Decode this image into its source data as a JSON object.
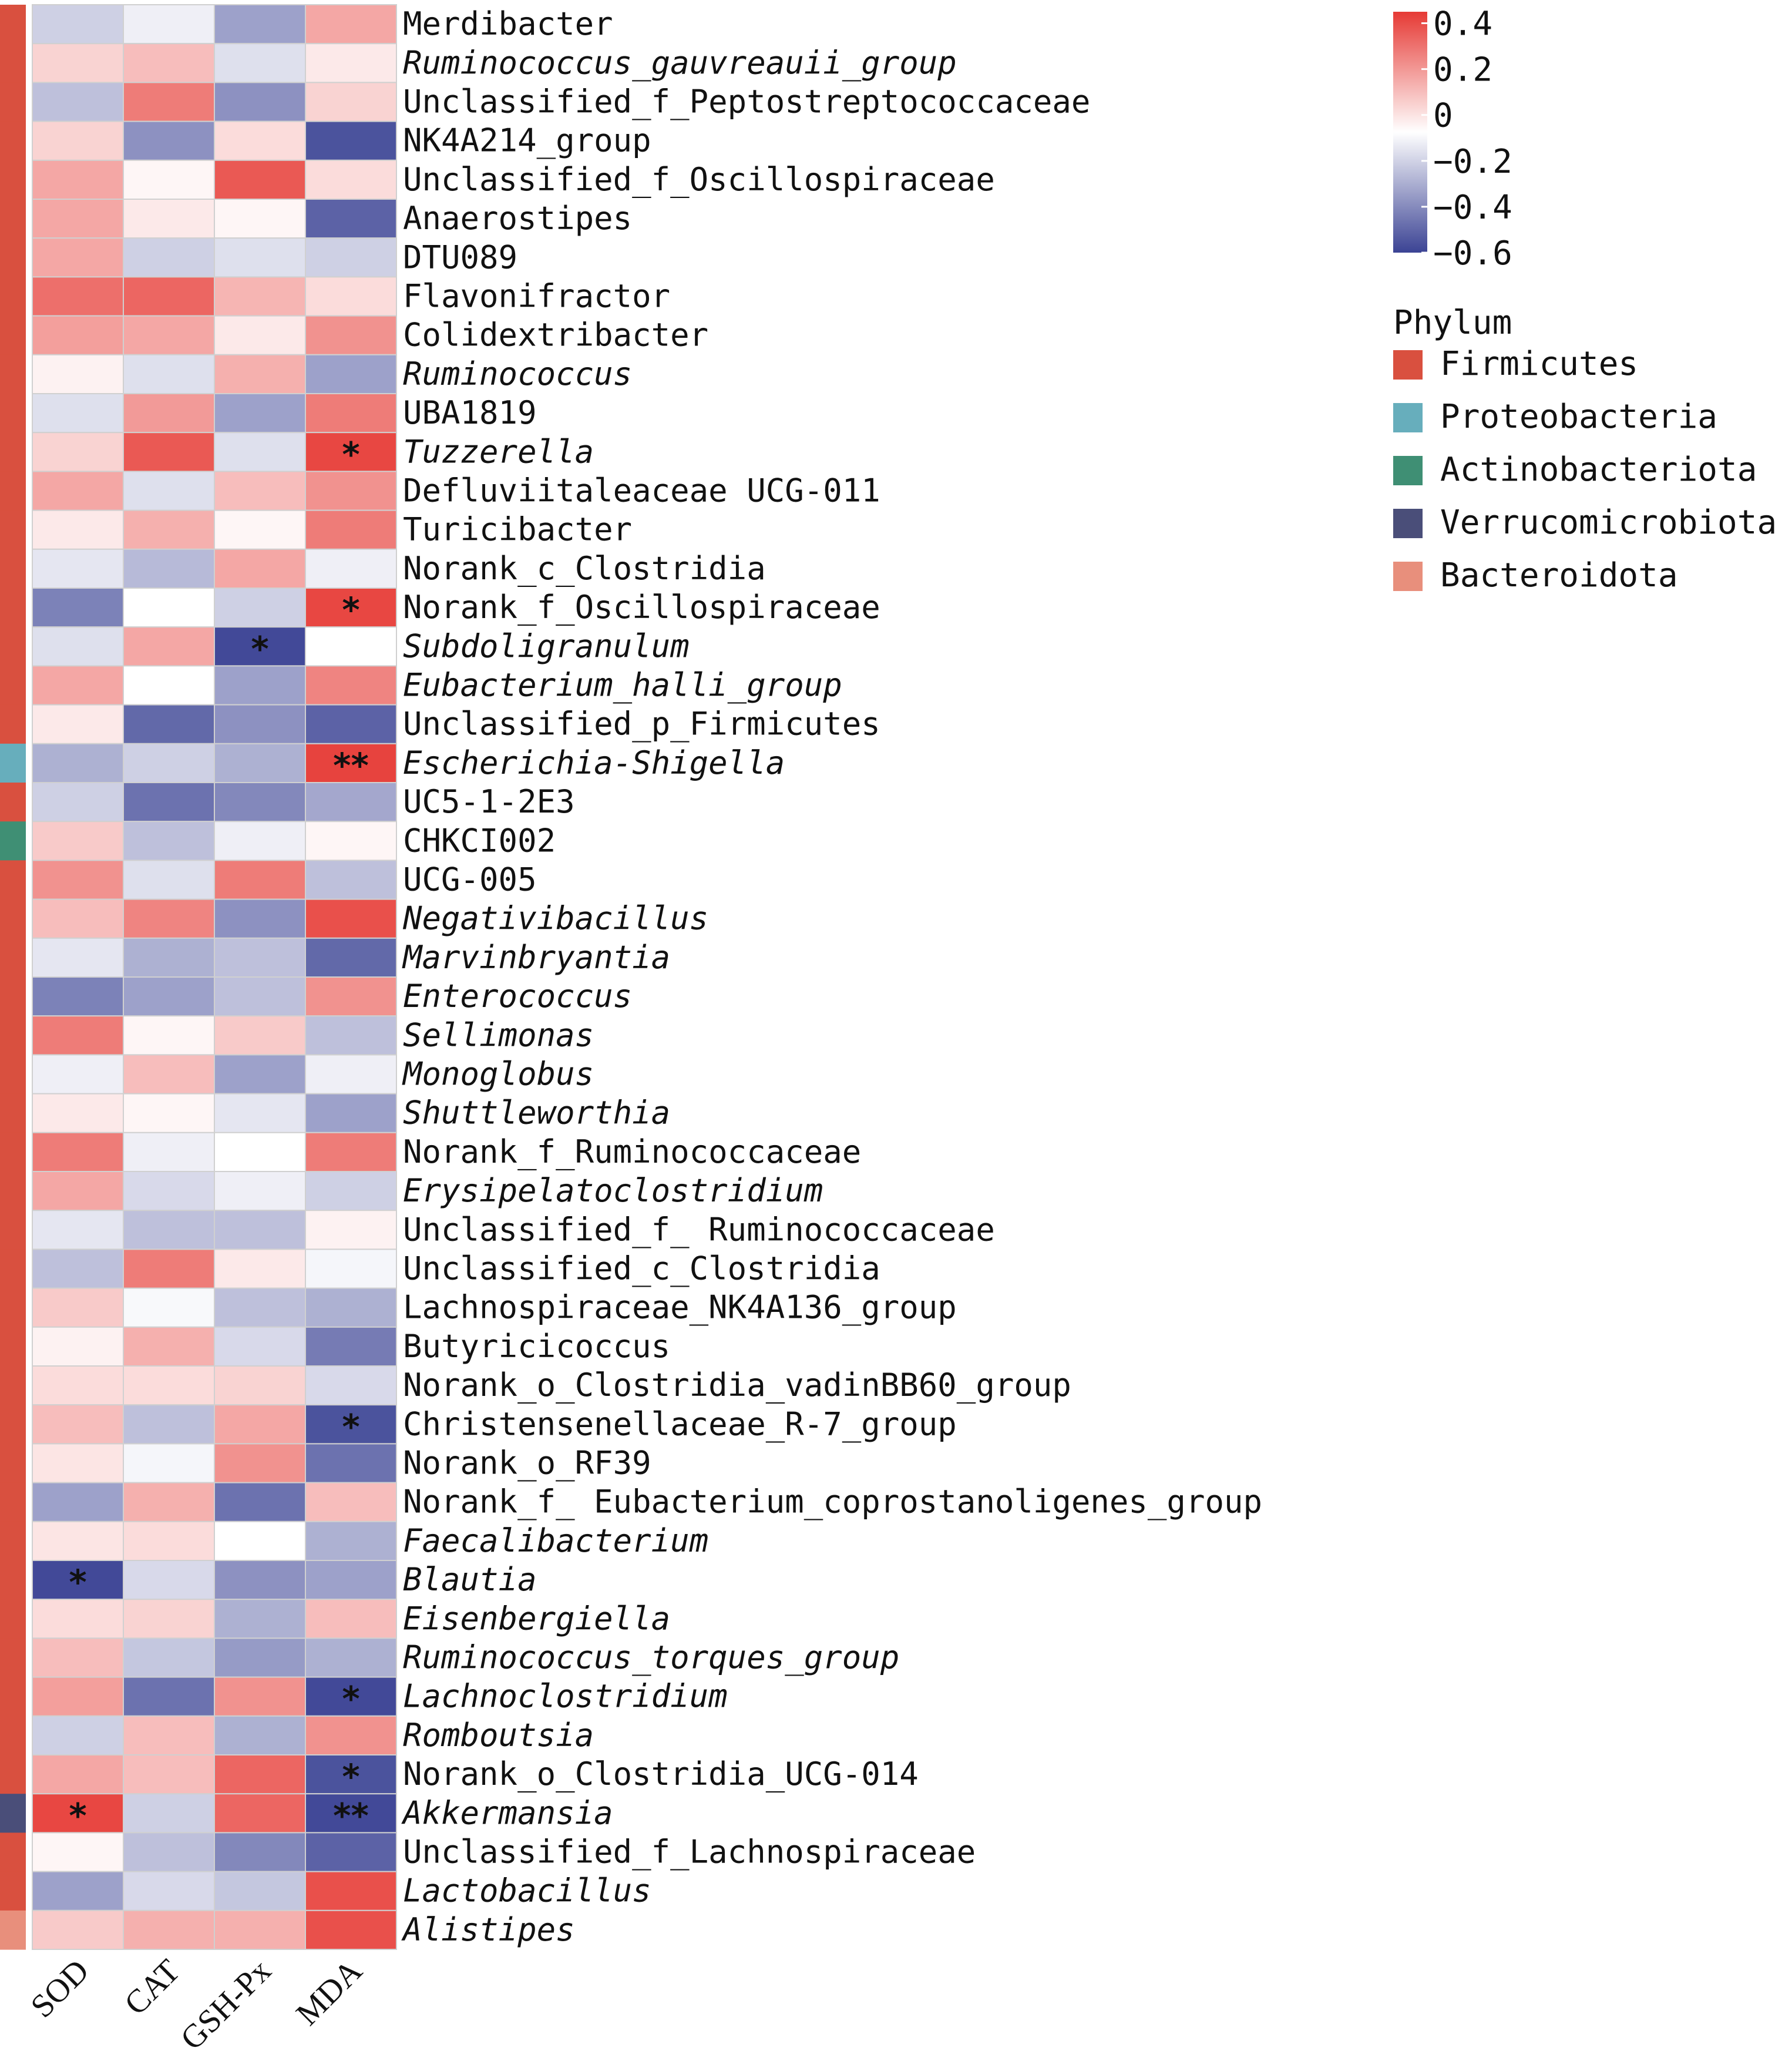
{
  "chart_data": {
    "type": "heatmap",
    "title": "",
    "columns": [
      "SOD",
      "CAT",
      "GSH-Px",
      "MDA"
    ],
    "color_scale": {
      "min": -0.6,
      "max": 0.45,
      "ticks": [
        0.4,
        0.2,
        0,
        -0.2,
        -0.4,
        -0.6
      ],
      "tick_labels": [
        "0.4",
        "0.2",
        "0",
        "−0.2",
        "−0.4",
        "−0.6"
      ],
      "low_color": "#3b4394",
      "mid_color": "#ffffff",
      "high_color": "#e63a35"
    },
    "phylum_legend": {
      "title": "Phylum",
      "items": [
        {
          "name": "Firmicutes",
          "color": "#d9503f"
        },
        {
          "name": "Proteobacteria",
          "color": "#67aebc"
        },
        {
          "name": "Actinobacteriota",
          "color": "#3f8f74"
        },
        {
          "name": "Verrucomicrobiota",
          "color": "#4a4e79"
        },
        {
          "name": "Bacteroidota",
          "color": "#e88f7c"
        }
      ]
    },
    "rows": [
      {
        "name": "Merdibacter",
        "italic": false,
        "phylum": "Firmicutes",
        "values": [
          -0.15,
          -0.05,
          -0.3,
          0.2
        ],
        "sig": [
          "",
          "",
          "",
          ""
        ]
      },
      {
        "name": "Ruminococcus_gauvreauii_group",
        "italic": true,
        "phylum": "Firmicutes",
        "values": [
          0.1,
          0.15,
          -0.1,
          0.05
        ],
        "sig": [
          "",
          "",
          "",
          ""
        ]
      },
      {
        "name": "Unclassified_f_Peptostreptococcaceae",
        "italic": false,
        "phylum": "Firmicutes",
        "values": [
          -0.2,
          0.3,
          -0.35,
          0.1
        ],
        "sig": [
          "",
          "",
          "",
          ""
        ]
      },
      {
        "name": "NK4A214_group",
        "italic": false,
        "phylum": "Firmicutes",
        "values": [
          0.1,
          -0.35,
          0.08,
          -0.55
        ],
        "sig": [
          "",
          "",
          "",
          ""
        ]
      },
      {
        "name": "Unclassified_f_Oscillospiraceae",
        "italic": false,
        "phylum": "Firmicutes",
        "values": [
          0.2,
          0.02,
          0.38,
          0.08
        ],
        "sig": [
          "",
          "",
          "",
          ""
        ]
      },
      {
        "name": "Anaerostipes",
        "italic": false,
        "phylum": "Firmicutes",
        "values": [
          0.2,
          0.05,
          0.02,
          -0.5
        ],
        "sig": [
          "",
          "",
          "",
          ""
        ]
      },
      {
        "name": "DTU089",
        "italic": false,
        "phylum": "Firmicutes",
        "values": [
          0.2,
          -0.15,
          -0.1,
          -0.15
        ],
        "sig": [
          "",
          "",
          "",
          ""
        ]
      },
      {
        "name": "Flavonifractor",
        "italic": false,
        "phylum": "Firmicutes",
        "values": [
          0.33,
          0.35,
          0.17,
          0.08
        ],
        "sig": [
          "",
          "",
          "",
          ""
        ]
      },
      {
        "name": "Colidextribacter",
        "italic": false,
        "phylum": "Firmicutes",
        "values": [
          0.22,
          0.2,
          0.05,
          0.25
        ],
        "sig": [
          "",
          "",
          "",
          ""
        ]
      },
      {
        "name": "Ruminococcus",
        "italic": true,
        "phylum": "Firmicutes",
        "values": [
          0.03,
          -0.1,
          0.18,
          -0.3
        ],
        "sig": [
          "",
          "",
          "",
          ""
        ]
      },
      {
        "name": "UBA1819",
        "italic": false,
        "phylum": "Firmicutes",
        "values": [
          -0.1,
          0.23,
          -0.3,
          0.3
        ],
        "sig": [
          "",
          "",
          "",
          ""
        ]
      },
      {
        "name": "Tuzzerella",
        "italic": true,
        "phylum": "Firmicutes",
        "values": [
          0.1,
          0.38,
          -0.1,
          0.42
        ],
        "sig": [
          "",
          "",
          "",
          "*"
        ]
      },
      {
        "name": "Defluviitaleaceae UCG-011",
        "italic": false,
        "phylum": "Firmicutes",
        "values": [
          0.2,
          -0.1,
          0.15,
          0.25
        ],
        "sig": [
          "",
          "",
          "",
          ""
        ]
      },
      {
        "name": "Turicibacter",
        "italic": false,
        "phylum": "Firmicutes",
        "values": [
          0.05,
          0.18,
          0.02,
          0.3
        ],
        "sig": [
          "",
          "",
          "",
          ""
        ]
      },
      {
        "name": "Norank_c_Clostridia",
        "italic": false,
        "phylum": "Firmicutes",
        "values": [
          -0.08,
          -0.22,
          0.2,
          -0.05
        ],
        "sig": [
          "",
          "",
          "",
          ""
        ]
      },
      {
        "name": "Norank_f_Oscillospiraceae",
        "italic": false,
        "phylum": "Firmicutes",
        "values": [
          -0.4,
          0.0,
          -0.15,
          0.42
        ],
        "sig": [
          "",
          "",
          "",
          "*"
        ]
      },
      {
        "name": "Subdoligranulum",
        "italic": true,
        "phylum": "Firmicutes",
        "values": [
          -0.1,
          0.2,
          -0.58,
          0.0
        ],
        "sig": [
          "",
          "",
          "*",
          ""
        ]
      },
      {
        "name": "Eubacterium_halli_group",
        "italic": true,
        "phylum": "Firmicutes",
        "values": [
          0.2,
          0.0,
          -0.3,
          0.28
        ],
        "sig": [
          "",
          "",
          "",
          ""
        ]
      },
      {
        "name": "Unclassified_p_Firmicutes",
        "italic": false,
        "phylum": "Firmicutes",
        "values": [
          0.05,
          -0.48,
          -0.35,
          -0.5
        ],
        "sig": [
          "",
          "",
          "",
          ""
        ]
      },
      {
        "name": "Escherichia-Shigella",
        "italic": true,
        "phylum": "Proteobacteria",
        "values": [
          -0.25,
          -0.15,
          -0.25,
          0.43
        ],
        "sig": [
          "",
          "",
          "",
          "**"
        ]
      },
      {
        "name": "UC5-1-2E3",
        "italic": false,
        "phylum": "Firmicutes",
        "values": [
          -0.15,
          -0.45,
          -0.38,
          -0.28
        ],
        "sig": [
          "",
          "",
          "",
          ""
        ]
      },
      {
        "name": "CHKCI002",
        "italic": false,
        "phylum": "Actinobacteriota",
        "values": [
          0.12,
          -0.2,
          -0.05,
          0.02
        ],
        "sig": [
          "",
          "",
          "",
          ""
        ]
      },
      {
        "name": "UCG-005",
        "italic": false,
        "phylum": "Firmicutes",
        "values": [
          0.25,
          -0.1,
          0.3,
          -0.2
        ],
        "sig": [
          "",
          "",
          "",
          ""
        ]
      },
      {
        "name": "Negativibacillus",
        "italic": true,
        "phylum": "Firmicutes",
        "values": [
          0.15,
          0.28,
          -0.35,
          0.4
        ],
        "sig": [
          "",
          "",
          "",
          ""
        ]
      },
      {
        "name": "Marvinbryantia",
        "italic": true,
        "phylum": "Firmicutes",
        "values": [
          -0.08,
          -0.25,
          -0.2,
          -0.48
        ],
        "sig": [
          "",
          "",
          "",
          ""
        ]
      },
      {
        "name": "Enterococcus",
        "italic": true,
        "phylum": "Firmicutes",
        "values": [
          -0.4,
          -0.3,
          -0.2,
          0.25
        ],
        "sig": [
          "",
          "",
          "",
          ""
        ]
      },
      {
        "name": "Sellimonas",
        "italic": true,
        "phylum": "Firmicutes",
        "values": [
          0.3,
          0.02,
          0.12,
          -0.2
        ],
        "sig": [
          "",
          "",
          "",
          ""
        ]
      },
      {
        "name": "Monoglobus",
        "italic": true,
        "phylum": "Firmicutes",
        "values": [
          -0.05,
          0.15,
          -0.3,
          -0.05
        ],
        "sig": [
          "",
          "",
          "",
          ""
        ]
      },
      {
        "name": "Shuttleworthia",
        "italic": true,
        "phylum": "Firmicutes",
        "values": [
          0.05,
          0.02,
          -0.08,
          -0.3
        ],
        "sig": [
          "",
          "",
          "",
          ""
        ]
      },
      {
        "name": "Norank_f_Ruminococcaceae",
        "italic": false,
        "phylum": "Firmicutes",
        "values": [
          0.3,
          -0.05,
          0.0,
          0.3
        ],
        "sig": [
          "",
          "",
          "",
          ""
        ]
      },
      {
        "name": "Erysipelatoclostridium",
        "italic": true,
        "phylum": "Firmicutes",
        "values": [
          0.2,
          -0.12,
          -0.05,
          -0.15
        ],
        "sig": [
          "",
          "",
          "",
          ""
        ]
      },
      {
        "name": "Unclassified_f_ Ruminococcaceae",
        "italic": false,
        "phylum": "Firmicutes",
        "values": [
          -0.08,
          -0.2,
          -0.2,
          0.03
        ],
        "sig": [
          "",
          "",
          "",
          ""
        ]
      },
      {
        "name": "Unclassified_c_Clostridia",
        "italic": false,
        "phylum": "Firmicutes",
        "values": [
          -0.2,
          0.3,
          0.05,
          -0.03
        ],
        "sig": [
          "",
          "",
          "",
          ""
        ]
      },
      {
        "name": "Lachnospiraceae_NK4A136_group",
        "italic": false,
        "phylum": "Firmicutes",
        "values": [
          0.12,
          -0.02,
          -0.2,
          -0.25
        ],
        "sig": [
          "",
          "",
          "",
          ""
        ]
      },
      {
        "name": "Butyricicoccus",
        "italic": false,
        "phylum": "Firmicutes",
        "values": [
          0.03,
          0.18,
          -0.12,
          -0.42
        ],
        "sig": [
          "",
          "",
          "",
          ""
        ]
      },
      {
        "name": "Norank_o_Clostridia_vadinBB60_group",
        "italic": false,
        "phylum": "Firmicutes",
        "values": [
          0.08,
          0.08,
          0.1,
          -0.12
        ],
        "sig": [
          "",
          "",
          "",
          ""
        ]
      },
      {
        "name": "Christensenellaceae_R-7_group",
        "italic": false,
        "phylum": "Firmicutes",
        "values": [
          0.15,
          -0.2,
          0.2,
          -0.55
        ],
        "sig": [
          "",
          "",
          "",
          "*"
        ]
      },
      {
        "name": "Norank_o_RF39",
        "italic": false,
        "phylum": "Firmicutes",
        "values": [
          0.06,
          -0.03,
          0.25,
          -0.45
        ],
        "sig": [
          "",
          "",
          "",
          ""
        ]
      },
      {
        "name": "Norank_f_ Eubacterium_coprostanoligenes_group",
        "italic": false,
        "phylum": "Firmicutes",
        "values": [
          -0.3,
          0.18,
          -0.45,
          0.15
        ],
        "sig": [
          "",
          "",
          "",
          ""
        ]
      },
      {
        "name": "Faecalibacterium",
        "italic": true,
        "phylum": "Firmicutes",
        "values": [
          0.06,
          0.08,
          0.0,
          -0.25
        ],
        "sig": [
          "",
          "",
          "",
          ""
        ]
      },
      {
        "name": "Blautia",
        "italic": true,
        "phylum": "Firmicutes",
        "values": [
          -0.58,
          -0.12,
          -0.35,
          -0.3
        ],
        "sig": [
          "*",
          "",
          "",
          ""
        ]
      },
      {
        "name": "Eisenbergiella",
        "italic": true,
        "phylum": "Firmicutes",
        "values": [
          0.08,
          0.1,
          -0.25,
          0.15
        ],
        "sig": [
          "",
          "",
          "",
          ""
        ]
      },
      {
        "name": "Ruminococcus_torques_group",
        "italic": true,
        "phylum": "Firmicutes",
        "values": [
          0.15,
          -0.18,
          -0.32,
          -0.25
        ],
        "sig": [
          "",
          "",
          "",
          ""
        ]
      },
      {
        "name": "Lachnoclostridium",
        "italic": true,
        "phylum": "Firmicutes",
        "values": [
          0.22,
          -0.45,
          0.25,
          -0.58
        ],
        "sig": [
          "",
          "",
          "",
          "*"
        ]
      },
      {
        "name": "Romboutsia",
        "italic": true,
        "phylum": "Firmicutes",
        "values": [
          -0.15,
          0.15,
          -0.25,
          0.25
        ],
        "sig": [
          "",
          "",
          "",
          ""
        ]
      },
      {
        "name": "Norank_o_Clostridia_UCG-014",
        "italic": false,
        "phylum": "Firmicutes",
        "values": [
          0.2,
          0.15,
          0.35,
          -0.55
        ],
        "sig": [
          "",
          "",
          "",
          "*"
        ]
      },
      {
        "name": "Akkermansia",
        "italic": true,
        "phylum": "Verrucomicrobiota",
        "values": [
          0.42,
          -0.15,
          0.35,
          -0.58
        ],
        "sig": [
          "*",
          "",
          "",
          "**"
        ]
      },
      {
        "name": "Unclassified_f_Lachnospiraceae",
        "italic": false,
        "phylum": "Firmicutes",
        "values": [
          0.02,
          -0.2,
          -0.38,
          -0.5
        ],
        "sig": [
          "",
          "",
          "",
          ""
        ]
      },
      {
        "name": "Lactobacillus",
        "italic": true,
        "phylum": "Firmicutes",
        "values": [
          -0.3,
          -0.12,
          -0.18,
          0.4
        ],
        "sig": [
          "",
          "",
          "",
          ""
        ]
      },
      {
        "name": "Alistipes",
        "italic": true,
        "phylum": "Bacteroidota",
        "values": [
          0.12,
          0.18,
          0.18,
          0.4
        ],
        "sig": [
          "",
          "",
          "",
          ""
        ]
      }
    ]
  }
}
